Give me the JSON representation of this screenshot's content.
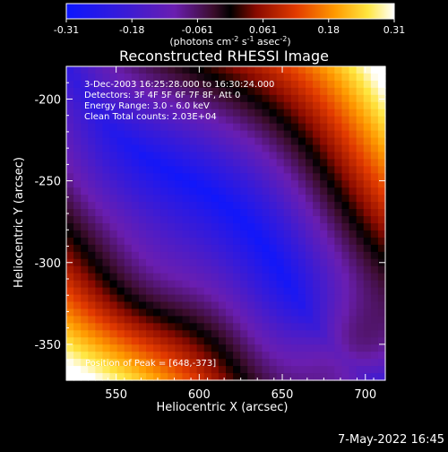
{
  "chart_data": {
    "type": "heatmap",
    "title": "Reconstructed RHESSI Image",
    "xlabel": "Heliocentric X (arcsec)",
    "ylabel": "Heliocentric Y (arcsec)",
    "xlim": [
      520,
      712
    ],
    "ylim": [
      -372,
      -180
    ],
    "xticks": [
      550,
      600,
      650,
      700
    ],
    "yticks": [
      -200,
      -250,
      -300,
      -350
    ],
    "colorbar": {
      "ticks": [
        "-0.31",
        "-0.18",
        "-0.061",
        "0.061",
        "0.18",
        "0.31"
      ],
      "range": [
        -0.31,
        0.31
      ],
      "unit_parts": [
        "(photons cm",
        "-2",
        " s",
        "-1",
        " asec",
        "-2",
        ")"
      ]
    },
    "annotations": [
      "3-Dec-2003 16:25:28.000 to 16:30:24.000",
      "Detectors: 3F 4F 5F 6F 7F 8F, Att 0",
      "Energy Range: 3.0 - 6.0 keV",
      "Clean     Total counts: 2.03E+04"
    ],
    "peak_label": "Position of Peak = [648,-373]",
    "timestamp": "7-May-2022 16:45",
    "image_description": "Smoothed intensity map: a negative (blue/purple) diagonal band from lower-left to upper-right, with positive (red/yellow/white) regions in the upper-left and lower-right corners; peak near lower-right."
  }
}
